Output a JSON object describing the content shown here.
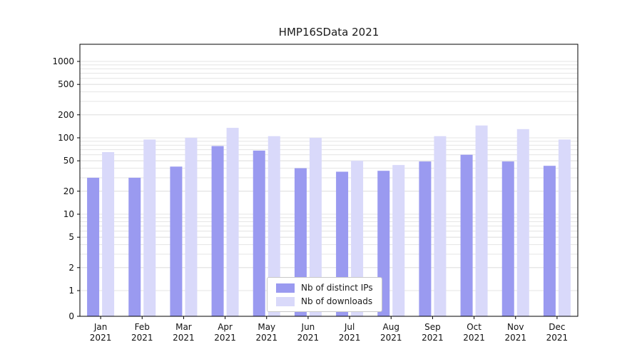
{
  "title": "HMP16SData 2021",
  "chart_data": {
    "type": "bar",
    "title": "HMP16SData 2021",
    "categories": [
      "Jan",
      "Feb",
      "Mar",
      "Apr",
      "May",
      "Jun",
      "Jul",
      "Aug",
      "Sep",
      "Oct",
      "Nov",
      "Dec"
    ],
    "year_label": "2021",
    "series": [
      {
        "name": "Nb of distinct IPs",
        "color": "#9a9af0",
        "values": [
          30,
          30,
          42,
          78,
          68,
          40,
          36,
          37,
          49,
          60,
          49,
          43
        ]
      },
      {
        "name": "Nb of downloads",
        "color": "#d9d9fa",
        "values": [
          65,
          95,
          100,
          135,
          105,
          100,
          50,
          44,
          105,
          145,
          130,
          95
        ]
      }
    ],
    "yscale": "symlog",
    "yticks": [
      0,
      1,
      2,
      5,
      10,
      20,
      50,
      100,
      200,
      500,
      1000
    ],
    "ylim": [
      0,
      1500
    ],
    "xlabel": "",
    "ylabel": "",
    "grid": true,
    "legend_position": "bottom-center"
  }
}
